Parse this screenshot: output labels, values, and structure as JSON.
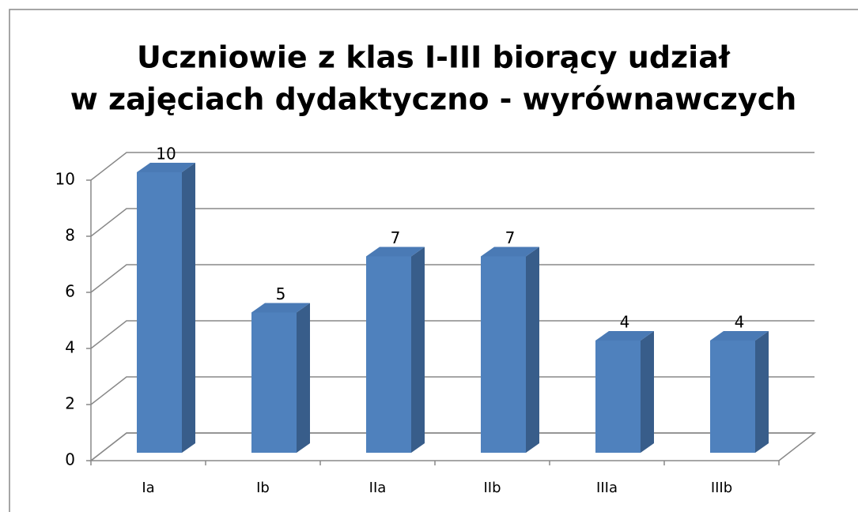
{
  "chart_data": {
    "type": "bar3d",
    "title": [
      "Uczniowie z klas I-III biorący udział",
      "w zajęciach dydaktyczno - wyrównawczych"
    ],
    "categories": [
      "Ia",
      "Ib",
      "IIa",
      "IIb",
      "IIIa",
      "IIIb"
    ],
    "values": [
      10,
      5,
      7,
      7,
      4,
      4
    ],
    "color": "#4f81bd",
    "ylim": [
      0,
      10
    ],
    "yticks": [
      0,
      2,
      4,
      6,
      8,
      10
    ],
    "grid": true
  }
}
